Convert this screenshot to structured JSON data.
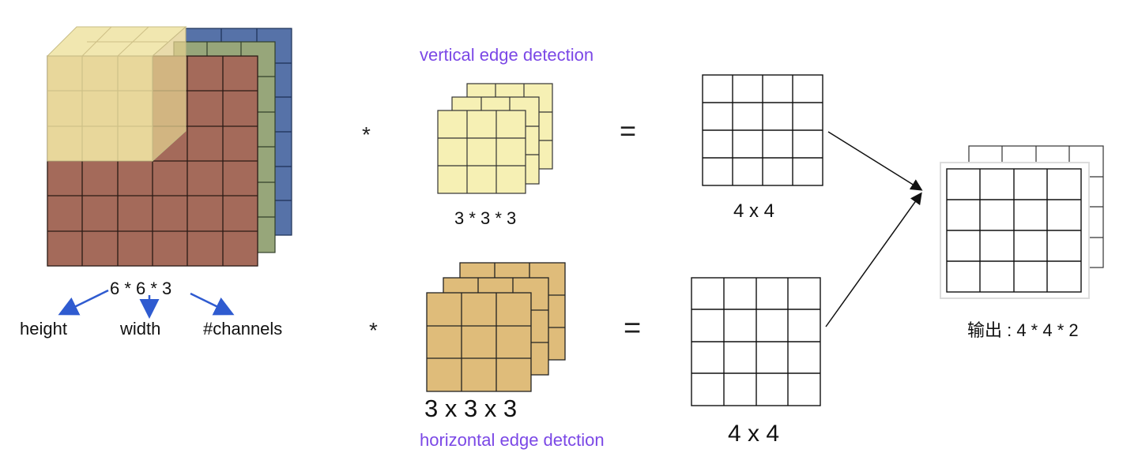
{
  "input": {
    "dims_label": "6 * 6 * 3",
    "height_label": "height",
    "width_label": "width",
    "channels_label": "#channels",
    "colors": {
      "red": "#a46a5a",
      "green": "#97a67a",
      "blue": "#5672a8",
      "yellow": "#efe3a2",
      "arrow": "#2f5bd0"
    }
  },
  "operators": {
    "convolve": "*",
    "equals": "="
  },
  "filter_vertical": {
    "title": "vertical edge detection",
    "dims_label": "3 * 3 * 3",
    "color": "#f6f0b4"
  },
  "filter_horizontal": {
    "title": "horizontal edge detction",
    "dims_label": "3 x 3 x 3",
    "color": "#dfbc7a"
  },
  "result_top": {
    "dims_label": "4 x 4"
  },
  "result_bottom": {
    "dims_label": "4 x 4"
  },
  "output": {
    "label": "输出 : 4 * 4 * 2"
  }
}
